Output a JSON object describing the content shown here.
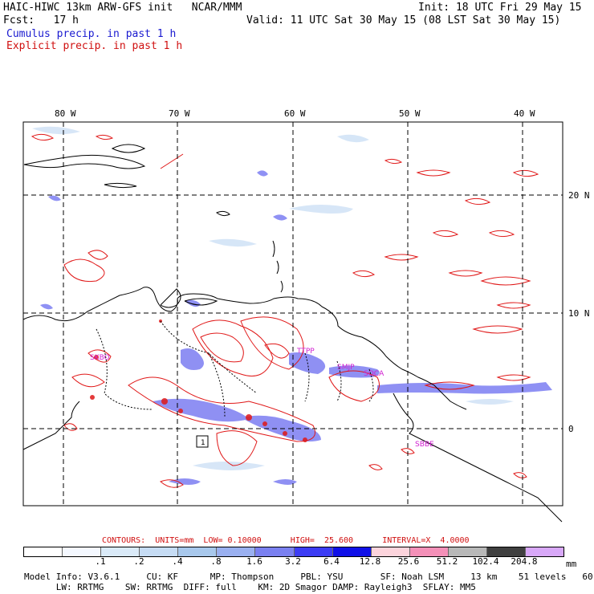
{
  "header": {
    "line1_left": "HAIC-HIWC 13km ARW-GFS init   NCAR/MMM",
    "line1_right": "Init: 18 UTC Fri 29 May 15",
    "line2_left": "Fcst:   17 h",
    "line2_right": "Valid: 11 UTC Sat 30 May 15 (08 LST Sat 30 May 15)",
    "line3": "Cumulus precip. in past 1 h",
    "line4": "Explicit precip. in past 1 h"
  },
  "map": {
    "lon_labels": [
      "80 W",
      "70 W",
      "60 W",
      "50 W",
      "40 W"
    ],
    "lat_labels": [
      "20 N",
      "10 N",
      "0"
    ],
    "stations": [
      "SKBO",
      "TTPP",
      "SMJP",
      "SOCA",
      "SBBE"
    ],
    "point_label": "1",
    "colors": {
      "cumulus": "#5a5af0",
      "explicit": "#e01818",
      "land": "#000000"
    }
  },
  "contours": "CONTOURS:  UNITS=mm  LOW= 0.10000      HIGH=  25.600      INTERVAL=X  4.0000",
  "colorbar": {
    "ticks": [
      ".1",
      ".2",
      ".4",
      ".8",
      "1.6",
      "3.2",
      "6.4",
      "12.8",
      "25.6",
      "51.2",
      "102.4",
      "204.8"
    ],
    "unit": "mm",
    "colors": [
      "#ffffff",
      "#f4f8ff",
      "#daeaf8",
      "#c6dcf4",
      "#a8c8ec",
      "#9ab0f0",
      "#7a80f0",
      "#3c3cf4",
      "#1010e8",
      "#fcd4dc",
      "#f490b8",
      "#b8b8b8",
      "#404040",
      "#d8a8f8"
    ]
  },
  "footer": {
    "line1": "Model Info: V3.6.1     CU: KF      MP: Thompson     PBL: YSU       SF: Noah LSM     13 km    51 levels   60 sec",
    "line2": "      LW: RRTMG    SW: RRTMG  DIFF: full    KM: 2D Smagor DAMP: Rayleigh3  SFLAY: MM5"
  }
}
